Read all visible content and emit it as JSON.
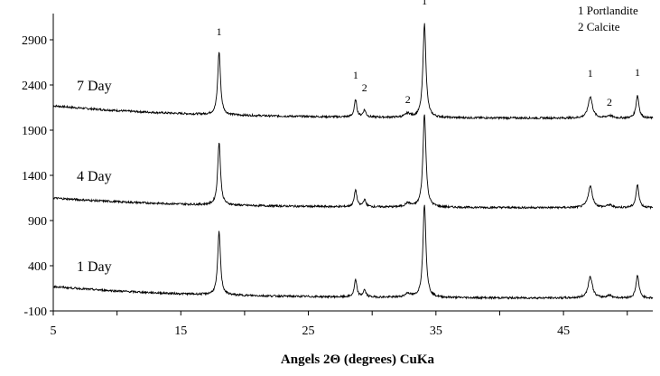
{
  "chart_data": {
    "type": "line",
    "title": "",
    "xlabel": "Angels 2Θ (degrees) CuKa",
    "ylabel": "",
    "xlim": [
      5,
      52
    ],
    "ylim": [
      -100,
      3300
    ],
    "x_ticks": [
      "5",
      "15",
      "25",
      "35",
      "45"
    ],
    "x_tick_values": [
      5,
      15,
      25,
      35,
      45
    ],
    "y_ticks": [
      "-100",
      "400",
      "900",
      "1400",
      "1900",
      "2400",
      "2900"
    ],
    "y_tick_values": [
      -100,
      400,
      900,
      1400,
      1900,
      2400,
      2900
    ],
    "grid": false,
    "legend": {
      "placement": "top-right",
      "entries": [
        "1 Portlandite",
        "2 Calcite"
      ]
    },
    "peaks": [
      {
        "pos": 18.0,
        "h": 1.0,
        "w": 0.13
      },
      {
        "pos": 28.7,
        "h": 0.27,
        "w": 0.12
      },
      {
        "pos": 29.4,
        "h": 0.11,
        "w": 0.13
      },
      {
        "pos": 32.8,
        "h": 0.06,
        "w": 0.25
      },
      {
        "pos": 34.1,
        "h": 1.48,
        "w": 0.14
      },
      {
        "pos": 47.1,
        "h": 0.34,
        "w": 0.2
      },
      {
        "pos": 48.6,
        "h": 0.04,
        "w": 0.25
      },
      {
        "pos": 50.8,
        "h": 0.36,
        "w": 0.14
      }
    ],
    "series": [
      {
        "name": "7 Day",
        "baseline_start": 2170,
        "baseline_end": 2030,
        "scale": 700
      },
      {
        "name": "4 Day",
        "baseline_start": 1150,
        "baseline_end": 1040,
        "scale": 700
      },
      {
        "name": "1 Day",
        "baseline_start": 170,
        "baseline_end": 40,
        "scale": 700
      }
    ],
    "annotations": [
      {
        "text": "1",
        "x": 18.0,
        "y": 2950
      },
      {
        "text": "1",
        "x": 28.7,
        "y": 2470
      },
      {
        "text": "2",
        "x": 29.4,
        "y": 2330
      },
      {
        "text": "2",
        "x": 32.8,
        "y": 2200
      },
      {
        "text": "1",
        "x": 34.1,
        "y": 3290
      },
      {
        "text": "1",
        "x": 47.1,
        "y": 2490
      },
      {
        "text": "2",
        "x": 48.6,
        "y": 2170
      },
      {
        "text": "1",
        "x": 50.8,
        "y": 2500
      }
    ]
  }
}
